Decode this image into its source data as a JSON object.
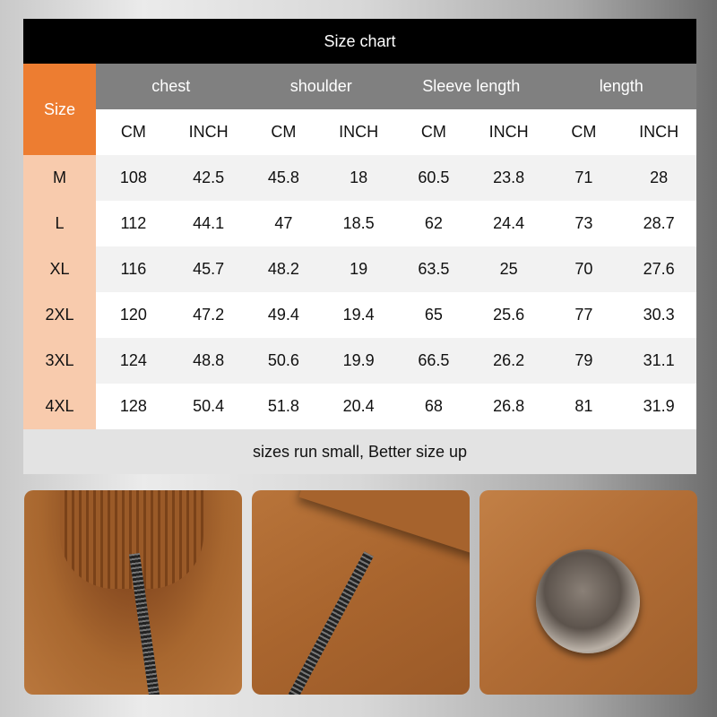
{
  "title": "Size chart",
  "size_header": "Size",
  "groups": [
    "chest",
    "shoulder",
    "Sleeve length",
    "length"
  ],
  "units": [
    "CM",
    "INCH",
    "CM",
    "INCH",
    "CM",
    "INCH",
    "CM",
    "INCH"
  ],
  "rows": [
    {
      "size": "M",
      "values": [
        "108",
        "42.5",
        "45.8",
        "18",
        "60.5",
        "23.8",
        "71",
        "28"
      ]
    },
    {
      "size": "L",
      "values": [
        "112",
        "44.1",
        "47",
        "18.5",
        "62",
        "24.4",
        "73",
        "28.7"
      ]
    },
    {
      "size": "XL",
      "values": [
        "116",
        "45.7",
        "48.2",
        "19",
        "63.5",
        "25",
        "70",
        "27.6"
      ]
    },
    {
      "size": "2XL",
      "values": [
        "120",
        "47.2",
        "49.4",
        "19.4",
        "65",
        "25.6",
        "77",
        "30.3"
      ]
    },
    {
      "size": "3XL",
      "values": [
        "124",
        "48.8",
        "50.6",
        "19.9",
        "66.5",
        "26.2",
        "79",
        "31.1"
      ]
    },
    {
      "size": "4XL",
      "values": [
        "128",
        "50.4",
        "51.8",
        "20.4",
        "68",
        "26.8",
        "81",
        "31.9"
      ]
    }
  ],
  "note": "sizes run small, Better size up",
  "colors": {
    "title_bg": "#000000",
    "size_header": "#ed7d31",
    "size_cells": "#f8cbad",
    "group_header": "#808080",
    "fabric": "#a8672f"
  },
  "photos": [
    "collar-zipper-detail",
    "pocket-zipper-detail",
    "button-detail"
  ]
}
